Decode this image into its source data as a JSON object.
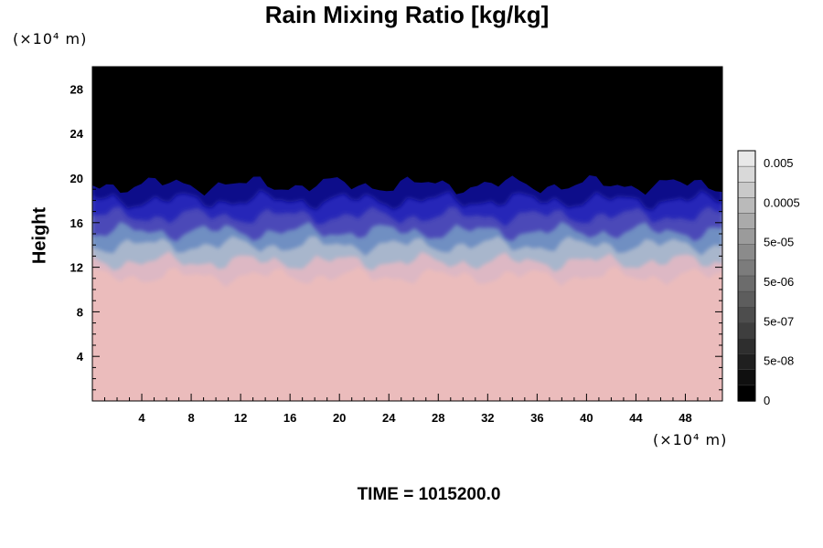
{
  "chart_data": {
    "type": "heatmap",
    "title": "Rain Mixing Ratio [kg/kg]",
    "xlabel": "",
    "ylabel": "Height",
    "x_unit_label": "(×10⁴ m)",
    "y_unit_label": "(×10⁴ m)",
    "time_label": "TIME = 1015200.0",
    "xlim": [
      0,
      51
    ],
    "ylim": [
      0,
      30
    ],
    "x_ticks": [
      4,
      8,
      12,
      16,
      20,
      24,
      28,
      32,
      36,
      40,
      44,
      48
    ],
    "y_ticks": [
      4,
      8,
      12,
      16,
      20,
      24,
      28
    ],
    "layers": [
      {
        "from": 0,
        "to": 11.2,
        "color": "#ebbcbc"
      },
      {
        "from": 11.2,
        "to": 12.5,
        "color": "#ddb8c4"
      },
      {
        "from": 12.5,
        "to": 14.0,
        "color": "#a8b6cc"
      },
      {
        "from": 14.0,
        "to": 15.2,
        "color": "#6f8fc2"
      },
      {
        "from": 15.2,
        "to": 16.6,
        "color": "#4b4ab8"
      },
      {
        "from": 16.6,
        "to": 18.0,
        "color": "#2828b8"
      },
      {
        "from": 18.0,
        "to": 19.4,
        "color": "#0d0d8a"
      },
      {
        "from": 19.4,
        "to": 30,
        "color": "#000000"
      }
    ],
    "colorbar": {
      "labels": [
        "0.005",
        "0.0005",
        "5e-05",
        "5e-06",
        "5e-07",
        "5e-08",
        "0"
      ],
      "levels": 16
    }
  }
}
